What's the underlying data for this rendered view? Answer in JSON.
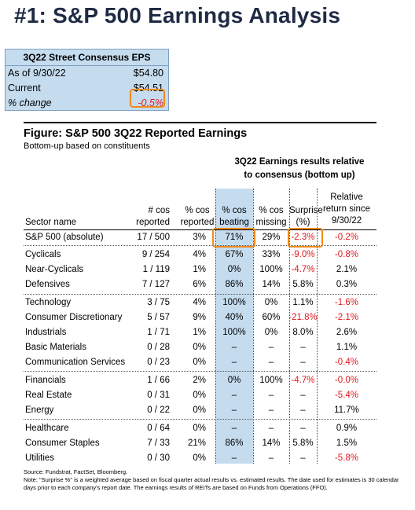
{
  "title": "#1: S&P 500 Earnings Analysis",
  "eps_box": {
    "header": "3Q22 Street Consensus EPS",
    "rows": [
      {
        "label": "As of  9/30/22",
        "value": "$54.80"
      },
      {
        "label": "Current",
        "value": "$54.51"
      },
      {
        "label": "% change",
        "value": "-0.5%"
      }
    ]
  },
  "figure": {
    "title": "Figure: S&P 500 3Q22 Reported Earnings",
    "subtitle": "Bottom-up based on constituents",
    "group_header_1": "3Q22 Earnings results relative",
    "group_header_2": "to consensus (bottom up)",
    "columns": {
      "sector": "Sector name",
      "reported_1": "# cos",
      "reported_2": "reported",
      "pct_rep_1": "% cos",
      "pct_rep_2": "reported",
      "beating_1": "% cos",
      "beating_2": "beating",
      "missing_1": "% cos",
      "missing_2": "missing",
      "surprise_1": "Surprise",
      "surprise_2": "(%)",
      "relative_1": "Relative",
      "relative_2": "return since",
      "relative_3": "9/30/22"
    },
    "rows": [
      {
        "sector": "S&P 500 (absolute)",
        "reported": "17 / 500",
        "pct_rep": "3%",
        "beating": "71%",
        "missing": "29%",
        "surprise": "-2.3%",
        "relative": "-0.2%"
      },
      {
        "sector": "Cyclicals",
        "reported": "9 / 254",
        "pct_rep": "4%",
        "beating": "67%",
        "missing": "33%",
        "surprise": "-9.0%",
        "relative": "-0.8%"
      },
      {
        "sector": "Near-Cyclicals",
        "reported": "1 / 119",
        "pct_rep": "1%",
        "beating": "0%",
        "missing": "100%",
        "surprise": "-4.7%",
        "relative": "2.1%"
      },
      {
        "sector": "Defensives",
        "reported": "7 / 127",
        "pct_rep": "6%",
        "beating": "86%",
        "missing": "14%",
        "surprise": "5.8%",
        "relative": "0.3%"
      },
      {
        "sector": "Technology",
        "reported": "3 / 75",
        "pct_rep": "4%",
        "beating": "100%",
        "missing": "0%",
        "surprise": "1.1%",
        "relative": "-1.6%"
      },
      {
        "sector": "Consumer Discretionary",
        "reported": "5 / 57",
        "pct_rep": "9%",
        "beating": "40%",
        "missing": "60%",
        "surprise": "-21.8%",
        "relative": "-2.1%"
      },
      {
        "sector": "Industrials",
        "reported": "1 / 71",
        "pct_rep": "1%",
        "beating": "100%",
        "missing": "0%",
        "surprise": "8.0%",
        "relative": "2.6%"
      },
      {
        "sector": "Basic Materials",
        "reported": "0 / 28",
        "pct_rep": "0%",
        "beating": "–",
        "missing": "–",
        "surprise": "–",
        "relative": "1.1%"
      },
      {
        "sector": "Communication Services",
        "reported": "0 / 23",
        "pct_rep": "0%",
        "beating": "–",
        "missing": "–",
        "surprise": "–",
        "relative": "-0.4%"
      },
      {
        "sector": "Financials",
        "reported": "1 / 66",
        "pct_rep": "2%",
        "beating": "0%",
        "missing": "100%",
        "surprise": "-4.7%",
        "relative": "-0.0%"
      },
      {
        "sector": "Real Estate",
        "reported": "0 / 31",
        "pct_rep": "0%",
        "beating": "–",
        "missing": "–",
        "surprise": "–",
        "relative": "-5.4%"
      },
      {
        "sector": "Energy",
        "reported": "0 / 22",
        "pct_rep": "0%",
        "beating": "–",
        "missing": "–",
        "surprise": "–",
        "relative": "11.7%"
      },
      {
        "sector": "Healthcare",
        "reported": "0 / 64",
        "pct_rep": "0%",
        "beating": "–",
        "missing": "–",
        "surprise": "–",
        "relative": "0.9%"
      },
      {
        "sector": "Consumer Staples",
        "reported": "7 / 33",
        "pct_rep": "21%",
        "beating": "86%",
        "missing": "14%",
        "surprise": "5.8%",
        "relative": "1.5%"
      },
      {
        "sector": "Utilities",
        "reported": "0 / 30",
        "pct_rep": "0%",
        "beating": "–",
        "missing": "–",
        "surprise": "–",
        "relative": "-5.8%"
      }
    ],
    "footnote_source": "Source: Fundstrat, FactSet, Bloomberg.",
    "footnote_note_1": "Note: \"Surprise %\" is a weighted average based on fiscal quarter actual results vs. estimated results.  The date used for estimates is 30 calendar",
    "footnote_note_2": "days prior to each company's report date. The earnings results of REITs are based on Funds from Operations (FFO)."
  },
  "colors": {
    "title": "#1f2a44",
    "box_fill": "#c5dcef",
    "highlight": "#f08a1c",
    "negative": "#e0191e"
  }
}
